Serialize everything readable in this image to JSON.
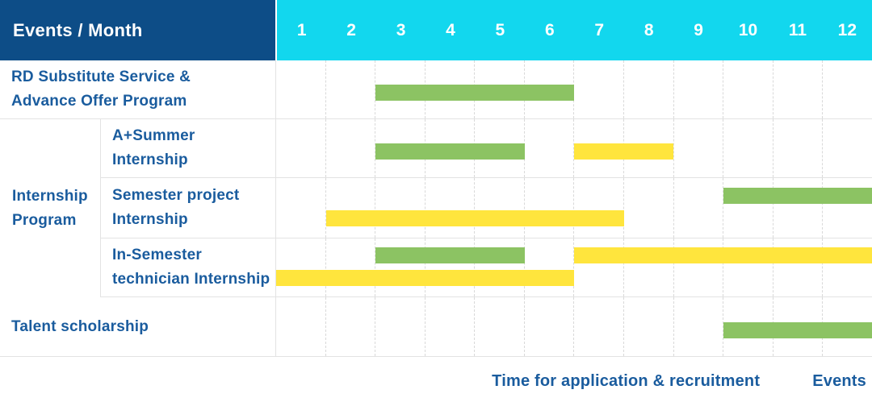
{
  "header": {
    "title": "Events / Month",
    "months": [
      "1",
      "2",
      "3",
      "4",
      "5",
      "6",
      "7",
      "8",
      "9",
      "10",
      "11",
      "12"
    ]
  },
  "colors": {
    "header_bg": "#0D4D87",
    "months_bg": "#12D7EE",
    "label_text": "#1A5C9E",
    "green": "#8CC363",
    "yellow": "#FFE53D",
    "grid": "#E3E3E3",
    "grid_dash": "#D9D9D9"
  },
  "group_label": {
    "lines": [
      "Internship",
      "Program"
    ]
  },
  "rows": [
    {
      "id": "rd-substitute-service",
      "label_lines": [
        "RD Substitute Service &",
        "Advance Offer Program"
      ],
      "indent": false,
      "lines": [
        [
          {
            "type": "green",
            "start": 3,
            "end": 6
          }
        ]
      ]
    },
    {
      "id": "a-plus-summer-internship",
      "label_lines": [
        "A+Summer",
        "Internship"
      ],
      "indent": true,
      "lines": [
        [
          {
            "type": "green",
            "start": 3,
            "end": 5
          },
          {
            "type": "yellow",
            "start": 7,
            "end": 8
          }
        ]
      ]
    },
    {
      "id": "semester-project-internship",
      "label_lines": [
        "Semester project",
        "Internship"
      ],
      "indent": true,
      "lines": [
        [
          {
            "type": "green",
            "start": 10,
            "end": 12
          }
        ],
        [
          {
            "type": "yellow",
            "start": 2,
            "end": 7
          }
        ]
      ]
    },
    {
      "id": "in-semester-technician-internship",
      "label_lines": [
        "In-Semester",
        "technician Internship"
      ],
      "indent": true,
      "lines": [
        [
          {
            "type": "green",
            "start": 3,
            "end": 5
          },
          {
            "type": "yellow",
            "start": 7,
            "end": 12
          }
        ],
        [
          {
            "type": "yellow",
            "start": 1,
            "end": 6
          }
        ]
      ]
    },
    {
      "id": "talent-scholarship",
      "label_lines": [
        "Talent scholarship"
      ],
      "indent": false,
      "lines": [
        [
          {
            "type": "green",
            "start": 10,
            "end": 12
          }
        ]
      ]
    }
  ],
  "legend": [
    {
      "swatch": "green",
      "label": "Time for application & recruitment"
    },
    {
      "swatch": "yellow",
      "label": "Events"
    }
  ],
  "chart_data": {
    "type": "gantt",
    "title": "Events / Month",
    "x_axis": {
      "label": "Month",
      "ticks": [
        1,
        2,
        3,
        4,
        5,
        6,
        7,
        8,
        9,
        10,
        11,
        12
      ],
      "range": [
        1,
        12
      ]
    },
    "grid": "on",
    "legend_position": "bottom-right",
    "categories": {
      "green": "Time for application & recruitment",
      "yellow": "Events"
    },
    "tasks": [
      {
        "name": "RD Substitute Service & Advance Offer Program",
        "group": null,
        "bars": [
          {
            "category": "Time for application & recruitment",
            "months": [
              3,
              6
            ]
          }
        ]
      },
      {
        "name": "A+Summer Internship",
        "group": "Internship Program",
        "bars": [
          {
            "category": "Time for application & recruitment",
            "months": [
              3,
              5
            ]
          },
          {
            "category": "Events",
            "months": [
              7,
              8
            ]
          }
        ]
      },
      {
        "name": "Semester project Internship",
        "group": "Internship Program",
        "bars": [
          {
            "category": "Time for application & recruitment",
            "months": [
              10,
              12
            ]
          },
          {
            "category": "Events",
            "months": [
              2,
              7
            ]
          }
        ]
      },
      {
        "name": "In-Semester technician Internship",
        "group": "Internship Program",
        "bars": [
          {
            "category": "Time for application & recruitment",
            "months": [
              3,
              5
            ]
          },
          {
            "category": "Events",
            "months": [
              7,
              12
            ]
          },
          {
            "category": "Events",
            "months": [
              1,
              6
            ]
          }
        ]
      },
      {
        "name": "Talent scholarship",
        "group": null,
        "bars": [
          {
            "category": "Time for application & recruitment",
            "months": [
              10,
              12
            ]
          }
        ]
      }
    ]
  }
}
